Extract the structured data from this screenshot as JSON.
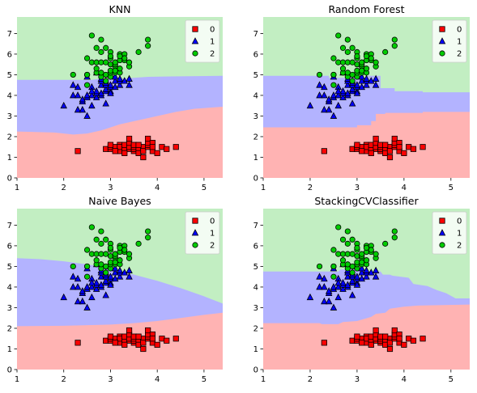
{
  "chart_data": [
    {
      "type": "scatter",
      "title": "KNN",
      "xlim": [
        1,
        5.4
      ],
      "ylim": [
        0,
        7.8
      ],
      "xticks": [
        "1",
        "2",
        "3",
        "4",
        "5"
      ],
      "yticks": [
        "0",
        "1",
        "2",
        "3",
        "4",
        "5",
        "6",
        "7"
      ],
      "legend": [
        "0",
        "1",
        "2"
      ],
      "legend_position": "top-right",
      "colors": {
        "class0": "#ff0000",
        "class1": "#0000ff",
        "class2": "#00cc00",
        "region0": "#ffb3b3",
        "region1": "#b3b3ff",
        "region2": "#c2eec2"
      },
      "boundary_01": [
        [
          1,
          2.25
        ],
        [
          1.8,
          2.2
        ],
        [
          2.2,
          2.1
        ],
        [
          2.5,
          2.15
        ],
        [
          2.8,
          2.3
        ],
        [
          3.2,
          2.6
        ],
        [
          3.6,
          2.8
        ],
        [
          4.0,
          3.0
        ],
        [
          4.4,
          3.2
        ],
        [
          4.8,
          3.35
        ],
        [
          5.4,
          3.45
        ]
      ],
      "boundary_12": [
        [
          1,
          4.75
        ],
        [
          2.6,
          4.75
        ],
        [
          2.75,
          4.8
        ],
        [
          3.3,
          4.82
        ],
        [
          3.8,
          4.9
        ],
        [
          4.3,
          4.92
        ],
        [
          5.4,
          4.95
        ]
      ]
    },
    {
      "type": "scatter",
      "title": "Random Forest",
      "xlim": [
        1,
        5.4
      ],
      "ylim": [
        0,
        7.8
      ],
      "xticks": [
        "1",
        "2",
        "3",
        "4",
        "5"
      ],
      "yticks": [
        "0",
        "1",
        "2",
        "3",
        "4",
        "5",
        "6",
        "7"
      ],
      "legend": [
        "0",
        "1",
        "2"
      ],
      "legend_position": "top-right",
      "colors": {
        "class0": "#ff0000",
        "class1": "#0000ff",
        "class2": "#00cc00",
        "region0": "#ffb3b3",
        "region1": "#b3b3ff",
        "region2": "#c2eec2"
      },
      "boundary_01": [
        [
          1,
          2.45
        ],
        [
          3.0,
          2.45
        ],
        [
          3.0,
          2.55
        ],
        [
          3.3,
          2.55
        ],
        [
          3.3,
          2.75
        ],
        [
          3.4,
          2.75
        ],
        [
          3.4,
          3.1
        ],
        [
          3.6,
          3.1
        ],
        [
          3.6,
          3.15
        ],
        [
          4.4,
          3.15
        ],
        [
          4.4,
          3.2
        ],
        [
          5.4,
          3.2
        ]
      ],
      "boundary_12": [
        [
          1,
          4.95
        ],
        [
          2.4,
          4.95
        ],
        [
          2.4,
          4.85
        ],
        [
          3.2,
          4.85
        ],
        [
          3.2,
          4.95
        ],
        [
          3.5,
          4.95
        ],
        [
          3.5,
          4.35
        ],
        [
          3.8,
          4.35
        ],
        [
          3.8,
          4.2
        ],
        [
          4.4,
          4.2
        ],
        [
          4.4,
          4.15
        ],
        [
          5.4,
          4.15
        ]
      ]
    },
    {
      "type": "scatter",
      "title": "Naive Bayes",
      "xlim": [
        1,
        5.4
      ],
      "ylim": [
        0,
        7.8
      ],
      "xticks": [
        "1",
        "2",
        "3",
        "4",
        "5"
      ],
      "yticks": [
        "0",
        "1",
        "2",
        "3",
        "4",
        "5",
        "6",
        "7"
      ],
      "legend": [
        "0",
        "1",
        "2"
      ],
      "legend_position": "top-right",
      "colors": {
        "class0": "#ff0000",
        "class1": "#0000ff",
        "class2": "#00cc00",
        "region0": "#ffb3b3",
        "region1": "#b3b3ff",
        "region2": "#c2eec2"
      },
      "boundary_01": [
        [
          1,
          2.1
        ],
        [
          2.0,
          2.12
        ],
        [
          3.0,
          2.18
        ],
        [
          3.5,
          2.25
        ],
        [
          4.0,
          2.35
        ],
        [
          4.5,
          2.5
        ],
        [
          5.0,
          2.65
        ],
        [
          5.4,
          2.75
        ]
      ],
      "boundary_12": [
        [
          1,
          5.4
        ],
        [
          1.5,
          5.35
        ],
        [
          2.0,
          5.25
        ],
        [
          2.5,
          5.1
        ],
        [
          3.0,
          4.9
        ],
        [
          3.5,
          4.6
        ],
        [
          4.0,
          4.3
        ],
        [
          4.5,
          3.95
        ],
        [
          5.0,
          3.55
        ],
        [
          5.4,
          3.2
        ]
      ]
    },
    {
      "type": "scatter",
      "title": "StackingCVClassifier",
      "xlim": [
        1,
        5.4
      ],
      "ylim": [
        0,
        7.8
      ],
      "xticks": [
        "1",
        "2",
        "3",
        "4",
        "5"
      ],
      "yticks": [
        "0",
        "1",
        "2",
        "3",
        "4",
        "5",
        "6",
        "7"
      ],
      "legend": [
        "0",
        "1",
        "2"
      ],
      "legend_position": "top-right",
      "colors": {
        "class0": "#ff0000",
        "class1": "#0000ff",
        "class2": "#00cc00",
        "region0": "#ffb3b3",
        "region1": "#b3b3ff",
        "region2": "#c2eec2"
      },
      "boundary_01": [
        [
          1,
          2.25
        ],
        [
          2.2,
          2.25
        ],
        [
          2.25,
          2.2
        ],
        [
          2.6,
          2.2
        ],
        [
          2.7,
          2.3
        ],
        [
          3.0,
          2.35
        ],
        [
          3.3,
          2.55
        ],
        [
          3.4,
          2.7
        ],
        [
          3.6,
          2.75
        ],
        [
          3.7,
          2.95
        ],
        [
          4.0,
          3.05
        ],
        [
          4.3,
          3.1
        ],
        [
          5.4,
          3.15
        ]
      ],
      "boundary_12": [
        [
          1,
          4.75
        ],
        [
          2.6,
          4.75
        ],
        [
          2.65,
          4.85
        ],
        [
          3.2,
          4.85
        ],
        [
          3.25,
          4.75
        ],
        [
          3.5,
          4.75
        ],
        [
          3.55,
          4.6
        ],
        [
          3.7,
          4.6
        ],
        [
          3.75,
          4.55
        ],
        [
          4.1,
          4.45
        ],
        [
          4.2,
          4.15
        ],
        [
          4.5,
          4.05
        ],
        [
          4.7,
          3.85
        ],
        [
          4.9,
          3.7
        ],
        [
          5.1,
          3.45
        ],
        [
          5.4,
          3.45
        ]
      ]
    }
  ],
  "scatter_points": {
    "class0": [
      [
        2.3,
        1.3
      ],
      [
        2.9,
        1.4
      ],
      [
        3.0,
        1.4
      ],
      [
        3.0,
        1.5
      ],
      [
        3.1,
        1.5
      ],
      [
        3.2,
        1.6
      ],
      [
        3.2,
        1.3
      ],
      [
        3.2,
        1.5
      ],
      [
        3.3,
        1.4
      ],
      [
        3.3,
        1.6
      ],
      [
        3.4,
        1.4
      ],
      [
        3.4,
        1.5
      ],
      [
        3.4,
        1.7
      ],
      [
        3.4,
        1.9
      ],
      [
        3.5,
        1.3
      ],
      [
        3.5,
        1.4
      ],
      [
        3.5,
        1.5
      ],
      [
        3.5,
        1.6
      ],
      [
        3.6,
        1.4
      ],
      [
        3.6,
        1.2
      ],
      [
        3.7,
        1.5
      ],
      [
        3.7,
        1.0
      ],
      [
        3.7,
        1.3
      ],
      [
        3.8,
        1.5
      ],
      [
        3.8,
        1.6
      ],
      [
        3.8,
        1.7
      ],
      [
        3.8,
        1.9
      ],
      [
        3.9,
        1.3
      ],
      [
        3.9,
        1.7
      ],
      [
        4.0,
        1.2
      ],
      [
        4.1,
        1.5
      ],
      [
        4.2,
        1.4
      ],
      [
        4.4,
        1.5
      ],
      [
        3.0,
        1.6
      ],
      [
        3.1,
        1.3
      ],
      [
        3.6,
        1.6
      ],
      [
        3.9,
        1.5
      ],
      [
        3.3,
        1.2
      ]
    ],
    "class1": [
      [
        2.0,
        3.5
      ],
      [
        2.2,
        4.0
      ],
      [
        2.2,
        4.5
      ],
      [
        2.3,
        4.0
      ],
      [
        2.3,
        4.4
      ],
      [
        2.3,
        3.3
      ],
      [
        2.4,
        3.3
      ],
      [
        2.4,
        3.7
      ],
      [
        2.4,
        3.8
      ],
      [
        2.5,
        3.0
      ],
      [
        2.5,
        3.9
      ],
      [
        2.5,
        4.0
      ],
      [
        2.5,
        4.9
      ],
      [
        2.6,
        3.5
      ],
      [
        2.6,
        4.0
      ],
      [
        2.6,
        4.4
      ],
      [
        2.7,
        3.9
      ],
      [
        2.7,
        4.1
      ],
      [
        2.7,
        4.2
      ],
      [
        2.8,
        4.0
      ],
      [
        2.8,
        4.1
      ],
      [
        2.8,
        4.5
      ],
      [
        2.8,
        4.7
      ],
      [
        2.9,
        3.6
      ],
      [
        2.9,
        4.2
      ],
      [
        2.9,
        4.3
      ],
      [
        2.9,
        4.5
      ],
      [
        2.9,
        4.6
      ],
      [
        2.9,
        4.7
      ],
      [
        3.0,
        4.2
      ],
      [
        3.0,
        4.4
      ],
      [
        3.0,
        4.5
      ],
      [
        3.0,
        5.0
      ],
      [
        3.1,
        4.4
      ],
      [
        3.1,
        4.7
      ],
      [
        3.1,
        4.9
      ],
      [
        3.2,
        4.5
      ],
      [
        3.2,
        4.7
      ],
      [
        3.2,
        4.8
      ],
      [
        3.3,
        4.7
      ],
      [
        3.4,
        4.5
      ],
      [
        3.4,
        4.8
      ],
      [
        2.7,
        5.1
      ],
      [
        2.8,
        4.8
      ],
      [
        3.0,
        4.1
      ],
      [
        2.6,
        4.2
      ]
    ],
    "class2": [
      [
        2.2,
        5.0
      ],
      [
        2.5,
        4.5
      ],
      [
        2.5,
        5.0
      ],
      [
        2.5,
        5.8
      ],
      [
        2.6,
        5.6
      ],
      [
        2.6,
        6.9
      ],
      [
        2.7,
        5.1
      ],
      [
        2.7,
        5.3
      ],
      [
        2.7,
        5.6
      ],
      [
        2.8,
        4.9
      ],
      [
        2.8,
        5.1
      ],
      [
        2.8,
        5.6
      ],
      [
        2.8,
        6.1
      ],
      [
        2.8,
        6.7
      ],
      [
        2.9,
        5.6
      ],
      [
        2.9,
        6.3
      ],
      [
        3.0,
        4.9
      ],
      [
        3.0,
        5.1
      ],
      [
        3.0,
        5.2
      ],
      [
        3.0,
        5.5
      ],
      [
        3.0,
        5.8
      ],
      [
        3.0,
        6.1
      ],
      [
        3.1,
        5.1
      ],
      [
        3.1,
        5.4
      ],
      [
        3.1,
        5.5
      ],
      [
        3.1,
        5.6
      ],
      [
        3.2,
        5.1
      ],
      [
        3.2,
        5.3
      ],
      [
        3.2,
        5.7
      ],
      [
        3.2,
        6.0
      ],
      [
        3.3,
        5.7
      ],
      [
        3.3,
        6.0
      ],
      [
        3.4,
        5.4
      ],
      [
        3.4,
        5.6
      ],
      [
        3.6,
        6.1
      ],
      [
        3.8,
        6.4
      ],
      [
        3.8,
        6.7
      ],
      [
        2.9,
        4.7
      ],
      [
        3.0,
        5.9
      ],
      [
        3.1,
        5.2
      ],
      [
        2.9,
        5.0
      ],
      [
        2.5,
        5.0
      ],
      [
        3.3,
        5.8
      ],
      [
        2.7,
        6.3
      ],
      [
        3.2,
        5.9
      ]
    ]
  }
}
